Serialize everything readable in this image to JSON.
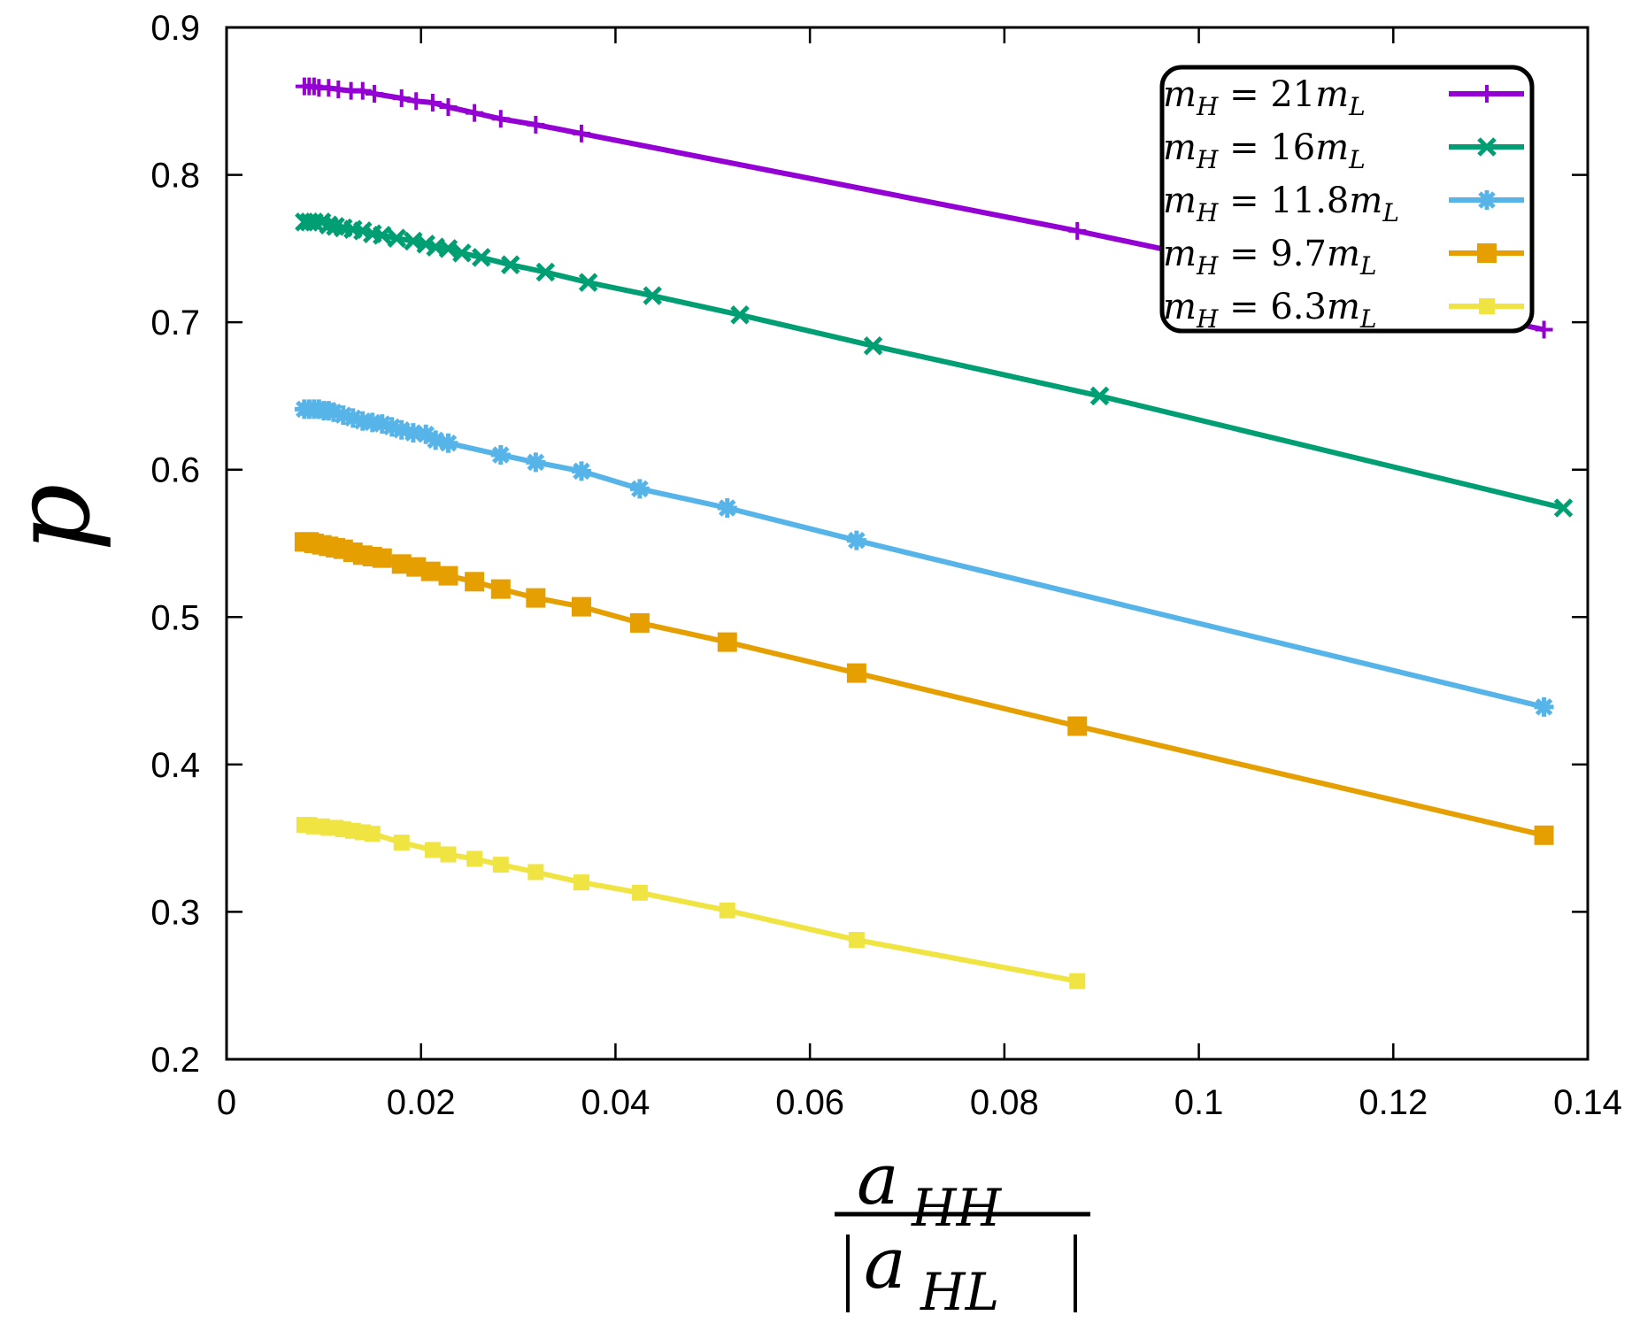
{
  "chart_data": {
    "type": "line",
    "title": "",
    "ylabel": "p",
    "xlabel": {
      "numerator": {
        "base": "a",
        "sub": "HH"
      },
      "denominator": {
        "base": "a",
        "sub": "HL",
        "abs": true
      }
    },
    "xlim": [
      0,
      0.14
    ],
    "ylim": [
      0.2,
      0.9
    ],
    "xticks": [
      0,
      0.02,
      0.04,
      0.06,
      0.08,
      0.1,
      0.12,
      0.14
    ],
    "xtick_labels": [
      "0",
      "0.02",
      "0.04",
      "0.06",
      "0.08",
      "0.1",
      "0.12",
      "0.14"
    ],
    "yticks": [
      0.2,
      0.3,
      0.4,
      0.5,
      0.6,
      0.7,
      0.8,
      0.9
    ],
    "ytick_labels": [
      "0.2",
      "0.3",
      "0.4",
      "0.5",
      "0.6",
      "0.7",
      "0.8",
      "0.9"
    ],
    "grid": false,
    "legend_position": "top-right",
    "series": [
      {
        "name": "m_H = 21m_L",
        "label": {
          "lhs": "m",
          "lhs_sub": "H",
          "eq": " = ",
          "coef": "21",
          "rhs": "m",
          "rhs_sub": "L"
        },
        "color": "#9400D3",
        "marker": "plus",
        "x": [
          0.008,
          0.0085,
          0.009,
          0.0095,
          0.0105,
          0.0115,
          0.0128,
          0.014,
          0.0152,
          0.018,
          0.0195,
          0.0212,
          0.0228,
          0.0255,
          0.0282,
          0.0318,
          0.0365,
          0.0875,
          0.1355
        ],
        "y": [
          0.86,
          0.86,
          0.86,
          0.859,
          0.859,
          0.858,
          0.857,
          0.857,
          0.855,
          0.852,
          0.85,
          0.849,
          0.846,
          0.842,
          0.838,
          0.834,
          0.828,
          0.762,
          0.695
        ]
      },
      {
        "name": "m_H = 16m_L",
        "label": {
          "lhs": "m",
          "lhs_sub": "H",
          "eq": " = ",
          "coef": "16",
          "rhs": "m",
          "rhs_sub": "L"
        },
        "color": "#009E73",
        "marker": "cross",
        "x": [
          0.008,
          0.0085,
          0.009,
          0.0098,
          0.0105,
          0.0112,
          0.012,
          0.013,
          0.014,
          0.015,
          0.016,
          0.0175,
          0.0192,
          0.0205,
          0.0215,
          0.0228,
          0.0242,
          0.0262,
          0.0292,
          0.0328,
          0.0372,
          0.0438,
          0.0528,
          0.0665,
          0.0898,
          0.1375
        ],
        "y": [
          0.768,
          0.768,
          0.768,
          0.768,
          0.766,
          0.765,
          0.764,
          0.763,
          0.762,
          0.76,
          0.759,
          0.757,
          0.755,
          0.753,
          0.751,
          0.75,
          0.747,
          0.744,
          0.739,
          0.734,
          0.727,
          0.718,
          0.705,
          0.684,
          0.65,
          0.574
        ]
      },
      {
        "name": "m_H = 11.8m_L",
        "label": {
          "lhs": "m",
          "lhs_sub": "H",
          "eq": " = ",
          "coef": "11.8",
          "rhs": "m",
          "rhs_sub": "L"
        },
        "color": "#56B4E9",
        "marker": "star",
        "x": [
          0.008,
          0.0085,
          0.009,
          0.0095,
          0.01,
          0.0105,
          0.011,
          0.012,
          0.013,
          0.014,
          0.015,
          0.016,
          0.017,
          0.018,
          0.0192,
          0.0205,
          0.0215,
          0.0228,
          0.0282,
          0.0318,
          0.0365,
          0.0425,
          0.0515,
          0.0648,
          0.1355
        ],
        "y": [
          0.641,
          0.641,
          0.641,
          0.641,
          0.64,
          0.64,
          0.639,
          0.637,
          0.635,
          0.633,
          0.632,
          0.631,
          0.629,
          0.627,
          0.625,
          0.624,
          0.62,
          0.618,
          0.61,
          0.605,
          0.599,
          0.587,
          0.574,
          0.552,
          0.439
        ]
      },
      {
        "name": "m_H = 9.7m_L",
        "label": {
          "lhs": "m",
          "lhs_sub": "H",
          "eq": " = ",
          "coef": "9.7",
          "rhs": "m",
          "rhs_sub": "L"
        },
        "color": "#E69F00",
        "marker": "square",
        "x": [
          0.008,
          0.0085,
          0.009,
          0.0098,
          0.0105,
          0.0112,
          0.012,
          0.013,
          0.014,
          0.015,
          0.016,
          0.018,
          0.0195,
          0.021,
          0.0228,
          0.0255,
          0.0282,
          0.0318,
          0.0365,
          0.0425,
          0.0515,
          0.0648,
          0.0875,
          0.1355
        ],
        "y": [
          0.551,
          0.551,
          0.55,
          0.549,
          0.548,
          0.547,
          0.546,
          0.544,
          0.542,
          0.541,
          0.54,
          0.536,
          0.534,
          0.531,
          0.528,
          0.524,
          0.519,
          0.513,
          0.507,
          0.496,
          0.483,
          0.462,
          0.426,
          0.352
        ]
      },
      {
        "name": "m_H = 6.3m_L",
        "label": {
          "lhs": "m",
          "lhs_sub": "H",
          "eq": " = ",
          "coef": "6.3",
          "rhs": "m",
          "rhs_sub": "L"
        },
        "color": "#F0E442",
        "marker": "smallsquare",
        "x": [
          0.008,
          0.0085,
          0.009,
          0.0098,
          0.0105,
          0.0112,
          0.012,
          0.013,
          0.014,
          0.015,
          0.018,
          0.0212,
          0.0228,
          0.0255,
          0.0282,
          0.0318,
          0.0365,
          0.0425,
          0.0515,
          0.0648,
          0.0875
        ],
        "y": [
          0.359,
          0.359,
          0.358,
          0.358,
          0.357,
          0.357,
          0.356,
          0.355,
          0.354,
          0.353,
          0.347,
          0.342,
          0.339,
          0.336,
          0.332,
          0.327,
          0.32,
          0.313,
          0.301,
          0.281,
          0.253
        ]
      }
    ]
  }
}
